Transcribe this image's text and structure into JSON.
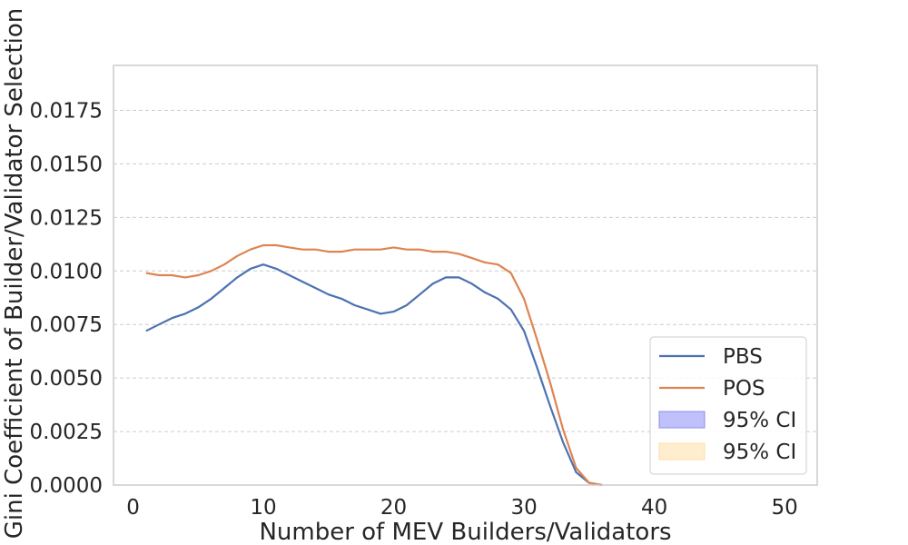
{
  "chart_data": {
    "type": "line",
    "title": "",
    "xlabel": "Number of MEV Builders/Validators",
    "ylabel": "Gini Coefficient of Builder/Validator Selection",
    "xlim": [
      -1.5,
      52.5
    ],
    "ylim": [
      0,
      0.0196
    ],
    "xticks": [
      0,
      10,
      20,
      30,
      40,
      50
    ],
    "xtick_labels": [
      "0",
      "10",
      "20",
      "30",
      "40",
      "50"
    ],
    "yticks": [
      0,
      0.0025,
      0.005,
      0.0075,
      0.01,
      0.0125,
      0.015,
      0.0175
    ],
    "ytick_labels": [
      "0.0000",
      "0.0025",
      "0.0050",
      "0.0075",
      "0.0100",
      "0.0125",
      "0.0150",
      "0.0175"
    ],
    "grid": "y",
    "legend_position": "bottom-right",
    "series": [
      {
        "name": "PBS",
        "color": "#4c72b0",
        "x": [
          1,
          2,
          3,
          4,
          5,
          6,
          7,
          8,
          9,
          10,
          11,
          12,
          13,
          14,
          15,
          16,
          17,
          18,
          19,
          20,
          21,
          22,
          23,
          24,
          25,
          26,
          27,
          28,
          29,
          30,
          31,
          32,
          33,
          34,
          35,
          36
        ],
        "y": [
          0.0072,
          0.0075,
          0.0078,
          0.008,
          0.0083,
          0.0087,
          0.0092,
          0.0097,
          0.0101,
          0.0103,
          0.0101,
          0.0098,
          0.0095,
          0.0092,
          0.0089,
          0.0087,
          0.0084,
          0.0082,
          0.008,
          0.0081,
          0.0084,
          0.0089,
          0.0094,
          0.0097,
          0.0097,
          0.0094,
          0.009,
          0.0087,
          0.0082,
          0.0072,
          0.0055,
          0.0037,
          0.002,
          0.0006,
          0.0001,
          0.0
        ]
      },
      {
        "name": "POS",
        "color": "#dd8452",
        "x": [
          1,
          2,
          3,
          4,
          5,
          6,
          7,
          8,
          9,
          10,
          11,
          12,
          13,
          14,
          15,
          16,
          17,
          18,
          19,
          20,
          21,
          22,
          23,
          24,
          25,
          26,
          27,
          28,
          29,
          30,
          31,
          32,
          33,
          34,
          35,
          36
        ],
        "y": [
          0.0099,
          0.0098,
          0.0098,
          0.0097,
          0.0098,
          0.01,
          0.0103,
          0.0107,
          0.011,
          0.0112,
          0.0112,
          0.0111,
          0.011,
          0.011,
          0.0109,
          0.0109,
          0.011,
          0.011,
          0.011,
          0.0111,
          0.011,
          0.011,
          0.0109,
          0.0109,
          0.0108,
          0.0106,
          0.0104,
          0.0103,
          0.0099,
          0.0087,
          0.0068,
          0.0048,
          0.0026,
          0.0008,
          0.0001,
          0.0
        ]
      }
    ],
    "ci_bands": [
      {
        "name": "95% CI",
        "color": "#8c8cf5"
      },
      {
        "name": "95% CI",
        "color": "#ffdfa8"
      }
    ]
  }
}
